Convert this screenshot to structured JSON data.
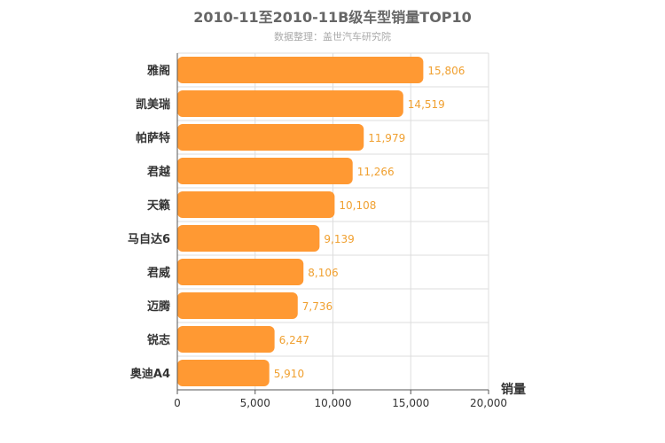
{
  "chart_data": {
    "type": "bar",
    "orientation": "horizontal",
    "title": "2010-11至2010-11B级车型销量TOP10",
    "subtitle": "数据整理：盖世汽车研究院",
    "categories": [
      "雅阁",
      "凯美瑞",
      "帕萨特",
      "君越",
      "天籁",
      "马自达6",
      "君威",
      "迈腾",
      "锐志",
      "奥迪A4"
    ],
    "values": [
      15806,
      14519,
      11979,
      11266,
      10108,
      9139,
      8106,
      7736,
      6247,
      5910
    ],
    "value_labels": [
      "15,806",
      "14,519",
      "11,979",
      "11,266",
      "10,108",
      "9,139",
      "8,106",
      "7,736",
      "6,247",
      "5,910"
    ],
    "xlabel": "销量",
    "ylabel": "",
    "xlim": [
      0,
      20000
    ],
    "ticks": [
      0,
      5000,
      10000,
      15000,
      20000
    ],
    "tick_labels": [
      "0",
      "5,000",
      "10,000",
      "15,000",
      "20,000"
    ],
    "grid": true,
    "bar_color": "#ff9933",
    "label_color": "#f0a030"
  }
}
